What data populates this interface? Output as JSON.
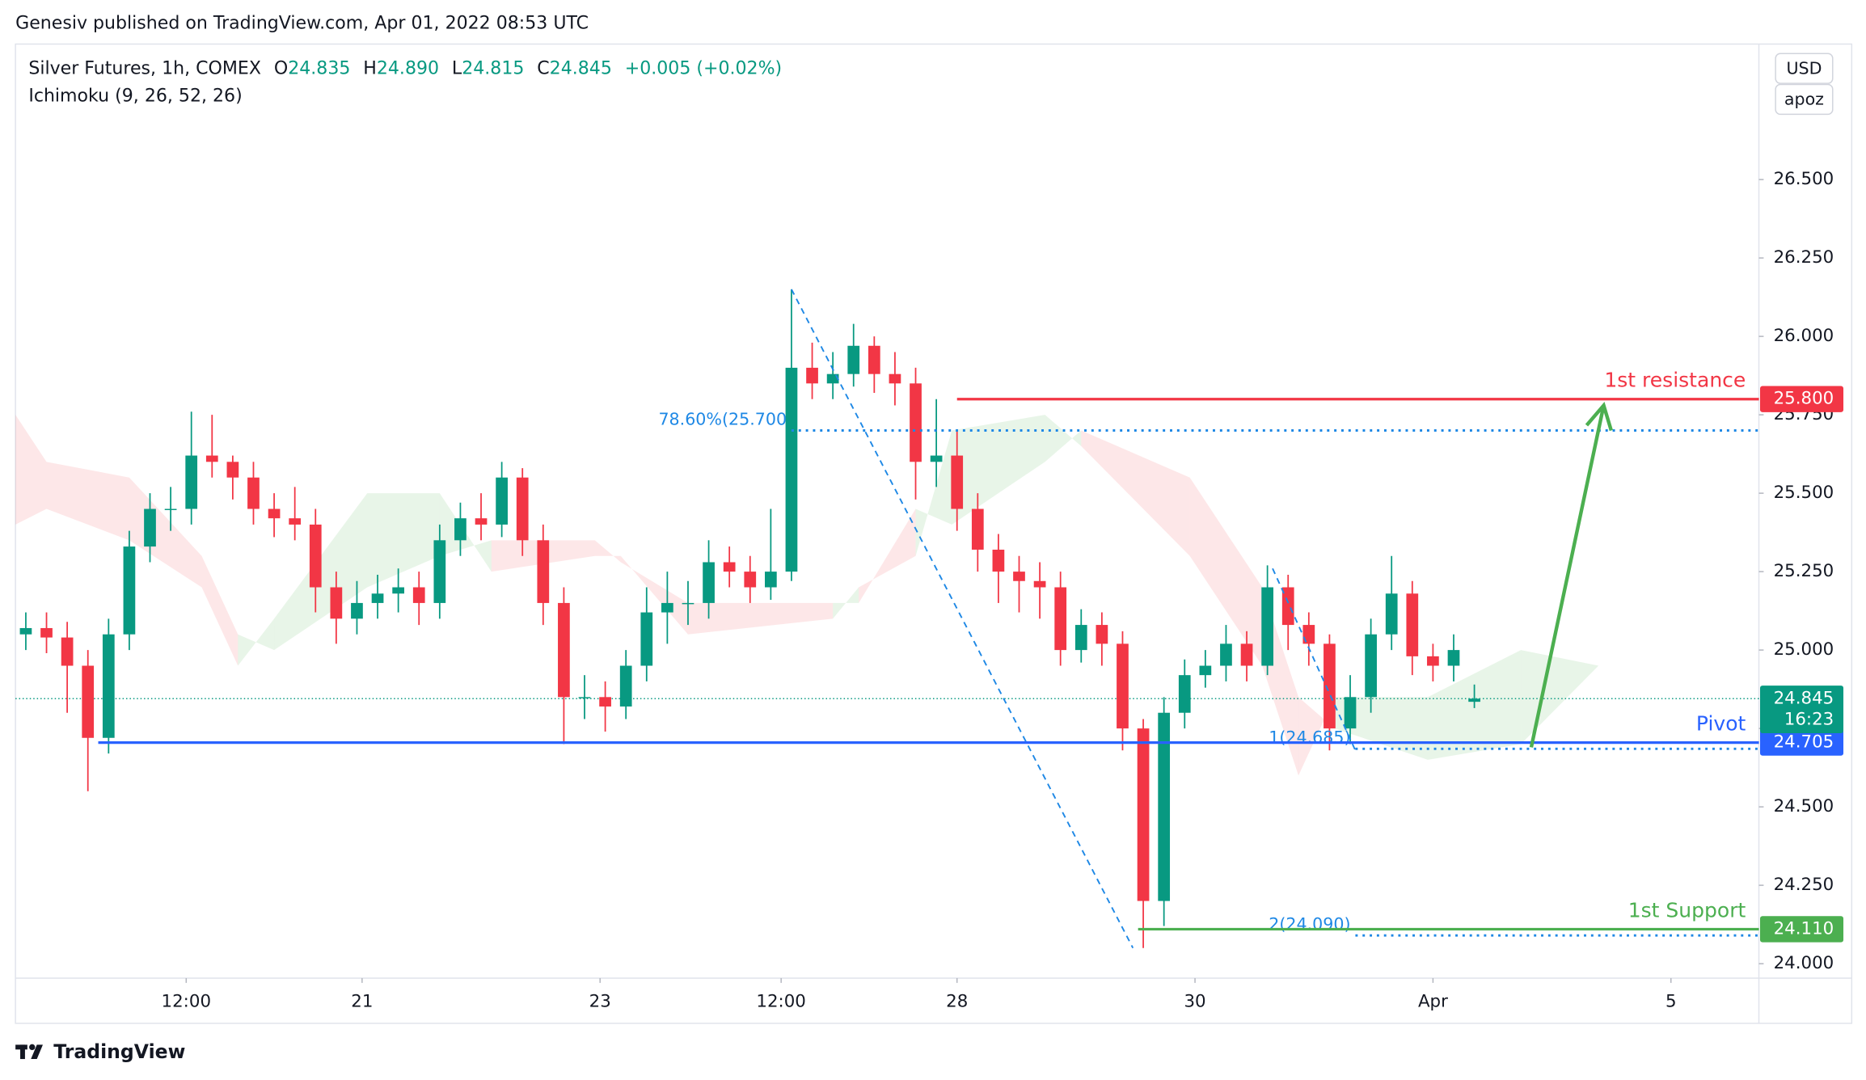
{
  "header": {
    "text": "Genesiv published on TradingView.com, Apr 01, 2022 08:53 UTC"
  },
  "legend": {
    "symbol": "Silver Futures, 1h, COMEX",
    "ohlc": [
      [
        "O",
        "24.835"
      ],
      [
        "H",
        "24.890"
      ],
      [
        "L",
        "24.815"
      ],
      [
        "C",
        "24.845"
      ]
    ],
    "change": "+0.005 (+0.02%)",
    "indicator": "Ichimoku (9, 26, 52, 26)"
  },
  "buttons": [
    "USD",
    "apoz"
  ],
  "footer": {
    "brand": "TradingView"
  },
  "chart_data": {
    "type": "candlestick",
    "up_color": "#089981",
    "down_color": "#f23645",
    "xlim": [
      0,
      337
    ],
    "ylim": [
      23.954,
      26.932
    ],
    "xticks": [
      {
        "value": 33,
        "label": "12:00"
      },
      {
        "value": 67,
        "label": "21"
      },
      {
        "value": 113,
        "label": "23"
      },
      {
        "value": 148,
        "label": "12:00"
      },
      {
        "value": 182,
        "label": "28"
      },
      {
        "value": 228,
        "label": "30"
      },
      {
        "value": 274,
        "label": "Apr"
      },
      {
        "value": 320,
        "label": "5"
      }
    ],
    "yticks": [
      {
        "value": 24,
        "label": "24.000"
      },
      {
        "value": 24.25,
        "label": "24.250"
      },
      {
        "value": 24.5,
        "label": "24.500"
      },
      {
        "value": 24.75,
        "label": "24.750"
      },
      {
        "value": 25,
        "label": "25.000"
      },
      {
        "value": 25.25,
        "label": "25.250"
      },
      {
        "value": 25.5,
        "label": "25.500"
      },
      {
        "value": 25.75,
        "label": "25.750"
      },
      {
        "value": 26,
        "label": "26.000"
      },
      {
        "value": 26.25,
        "label": "26.250"
      },
      {
        "value": 26.5,
        "label": "26.500"
      }
    ],
    "x": [
      2,
      6,
      10,
      14,
      18,
      22,
      26,
      30,
      34,
      38,
      42,
      46,
      50,
      54,
      58,
      62,
      66,
      70,
      74,
      78,
      82,
      86,
      90,
      94,
      98,
      102,
      106,
      110,
      114,
      118,
      122,
      126,
      130,
      134,
      138,
      142,
      146,
      150,
      154,
      158,
      162,
      166,
      170,
      174,
      178,
      182,
      186,
      190,
      194,
      198,
      202,
      206,
      210,
      214,
      218,
      222,
      226,
      230,
      234,
      238,
      242,
      246,
      250,
      254,
      258,
      262,
      266,
      270,
      274,
      278,
      282
    ],
    "open": [
      25.05,
      25.07,
      25.04,
      24.95,
      24.72,
      25.05,
      25.33,
      25.45,
      25.45,
      25.62,
      25.6,
      25.55,
      25.45,
      25.42,
      25.4,
      25.2,
      25.1,
      25.15,
      25.18,
      25.2,
      25.15,
      25.35,
      25.42,
      25.4,
      25.55,
      25.35,
      25.15,
      24.85,
      24.85,
      24.82,
      24.95,
      25.12,
      25.15,
      25.15,
      25.28,
      25.25,
      25.2,
      25.25,
      25.9,
      25.85,
      25.88,
      25.97,
      25.88,
      25.85,
      25.6,
      25.62,
      25.45,
      25.32,
      25.25,
      25.22,
      25.2,
      25.0,
      25.08,
      25.02,
      24.75,
      24.2,
      24.8,
      24.92,
      24.95,
      25.02,
      24.95,
      25.2,
      25.08,
      25.02,
      24.75,
      24.85,
      25.05,
      25.18,
      24.98,
      24.95,
      24.835
    ],
    "high": [
      25.12,
      25.12,
      25.09,
      25.0,
      25.1,
      25.38,
      25.5,
      25.52,
      25.76,
      25.75,
      25.62,
      25.6,
      25.5,
      25.52,
      25.45,
      25.25,
      25.22,
      25.24,
      25.26,
      25.25,
      25.4,
      25.47,
      25.5,
      25.6,
      25.58,
      25.4,
      25.2,
      24.92,
      24.9,
      25.0,
      25.2,
      25.25,
      25.22,
      25.35,
      25.33,
      25.3,
      25.45,
      26.15,
      25.98,
      25.95,
      26.04,
      26.0,
      25.95,
      25.9,
      25.8,
      25.7,
      25.5,
      25.37,
      25.3,
      25.28,
      25.25,
      25.13,
      25.12,
      25.06,
      24.78,
      24.85,
      24.97,
      25.0,
      25.08,
      25.06,
      25.27,
      25.24,
      25.12,
      25.05,
      24.92,
      25.1,
      25.3,
      25.22,
      25.02,
      25.05,
      24.89
    ],
    "low": [
      25.0,
      24.99,
      24.8,
      24.55,
      24.67,
      25.0,
      25.28,
      25.38,
      25.4,
      25.55,
      25.48,
      25.4,
      25.36,
      25.35,
      25.12,
      25.02,
      25.05,
      25.1,
      25.12,
      25.08,
      25.1,
      25.3,
      25.35,
      25.36,
      25.3,
      25.08,
      24.7,
      24.78,
      24.74,
      24.78,
      24.9,
      25.02,
      25.08,
      25.1,
      25.2,
      25.15,
      25.16,
      25.22,
      25.8,
      25.8,
      25.84,
      25.82,
      25.78,
      25.48,
      25.52,
      25.38,
      25.25,
      25.15,
      25.12,
      25.1,
      24.95,
      24.96,
      24.95,
      24.68,
      24.05,
      24.12,
      24.75,
      24.88,
      24.9,
      24.9,
      24.92,
      25.0,
      24.95,
      24.68,
      24.7,
      24.8,
      25.0,
      24.92,
      24.9,
      24.9,
      24.815
    ],
    "close": [
      25.07,
      25.04,
      24.95,
      24.72,
      25.05,
      25.33,
      25.45,
      25.45,
      25.62,
      25.6,
      25.55,
      25.45,
      25.42,
      25.4,
      25.2,
      25.1,
      25.15,
      25.18,
      25.2,
      25.15,
      25.35,
      25.42,
      25.4,
      25.55,
      25.35,
      25.15,
      24.85,
      24.85,
      24.82,
      24.95,
      25.12,
      25.15,
      25.15,
      25.28,
      25.25,
      25.2,
      25.25,
      25.9,
      25.85,
      25.88,
      25.97,
      25.88,
      25.85,
      25.6,
      25.62,
      25.45,
      25.32,
      25.25,
      25.22,
      25.2,
      25.0,
      25.08,
      25.02,
      24.75,
      24.2,
      24.8,
      24.92,
      24.95,
      25.02,
      24.95,
      25.2,
      25.08,
      25.02,
      24.75,
      24.85,
      25.05,
      25.18,
      24.98,
      24.95,
      25.0,
      24.845
    ],
    "cloud": {
      "up_color": "rgba(76,175,80,0.13)",
      "down_color": "rgba(242,54,69,0.12)",
      "x": [
        0,
        6,
        22,
        36,
        43,
        50,
        68,
        82,
        92,
        112,
        117,
        130,
        158,
        163,
        174,
        181,
        199,
        206,
        227,
        241,
        248,
        255,
        273,
        291,
        306
      ],
      "span_a": [
        25.4,
        25.45,
        25.35,
        25.2,
        24.95,
        25.1,
        25.5,
        25.5,
        25.25,
        25.3,
        25.3,
        25.05,
        25.1,
        25.2,
        25.3,
        25.7,
        25.75,
        25.65,
        25.3,
        24.95,
        24.6,
        24.85,
        24.85,
        25.0,
        24.95
      ],
      "span_b": [
        25.75,
        25.6,
        25.55,
        25.3,
        25.05,
        25.0,
        25.2,
        25.3,
        25.35,
        25.35,
        25.28,
        25.15,
        25.15,
        25.15,
        25.45,
        25.4,
        25.6,
        25.7,
        25.55,
        25.2,
        24.85,
        24.75,
        24.65,
        24.7,
        24.95
      ]
    },
    "levels": [
      {
        "label": "1st resistance",
        "price": 25.8,
        "price_label": "25.800",
        "color": "#f23645",
        "from": 182
      },
      {
        "label": "Pivot",
        "price": 24.705,
        "price_label": "24.705",
        "color": "#2962ff",
        "from": 16
      },
      {
        "label": "1st Support",
        "price": 24.11,
        "price_label": "24.110",
        "color": "#4caf50",
        "from": 217
      }
    ],
    "fib_lines": {
      "color": "#1e88e5",
      "items": [
        {
          "label": "78.60%(25.700",
          "price": 25.7,
          "from": 150
        },
        {
          "label": "1(24.685)",
          "price": 24.685,
          "from": 259
        },
        {
          "label": "2(24.090)",
          "price": 24.09,
          "from": 259
        }
      ]
    },
    "trend_lines": {
      "color": "#1e88e5",
      "items": [
        {
          "x": [
            150,
            216
          ],
          "y": [
            26.15,
            24.05
          ]
        },
        {
          "x": [
            243,
            259
          ],
          "y": [
            25.26,
            24.68
          ]
        }
      ]
    },
    "arrow": {
      "x": [
        293,
        307
      ],
      "y": [
        24.69,
        25.78
      ],
      "color": "#4caf50"
    },
    "last_price": {
      "value": 24.845,
      "label": "24.845",
      "countdown": "16:23",
      "color": "#089981"
    }
  }
}
